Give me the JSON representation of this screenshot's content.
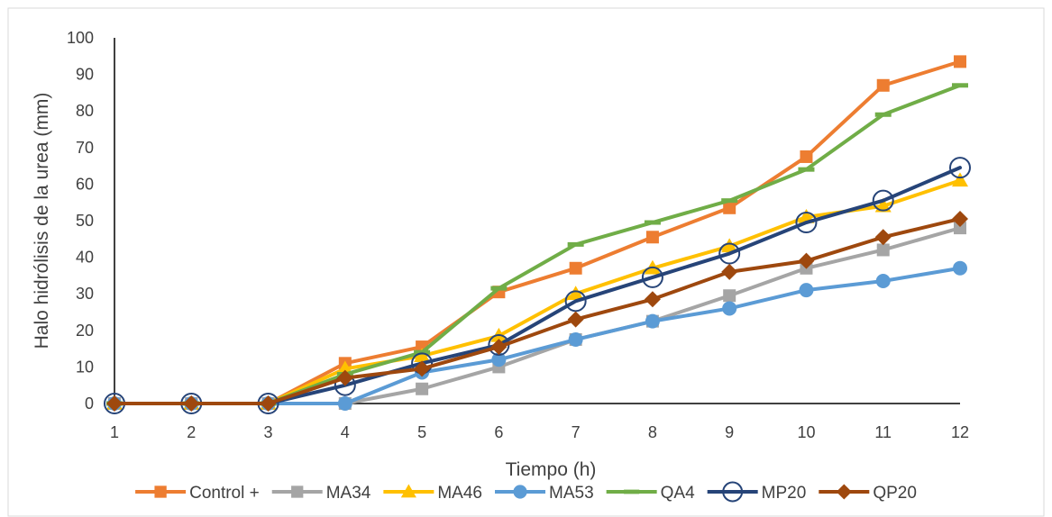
{
  "chart_data": {
    "type": "line",
    "title": "",
    "xlabel": "Tiempo (h)",
    "ylabel": "Halo hidrólisis de la urea  (mm)",
    "x": [
      1,
      2,
      3,
      4,
      5,
      6,
      7,
      8,
      9,
      10,
      11,
      12
    ],
    "xticks": [
      "1",
      "2",
      "3",
      "4",
      "5",
      "6",
      "7",
      "8",
      "9",
      "10",
      "11",
      "12"
    ],
    "ylim": [
      0,
      100
    ],
    "yticks": [
      "0",
      "10",
      "20",
      "30",
      "40",
      "50",
      "60",
      "70",
      "80",
      "90",
      "100"
    ],
    "grid": false,
    "legend_position": "bottom",
    "series": [
      {
        "name": "Control +",
        "color": "#ED7D31",
        "marker": "square",
        "values": [
          0,
          0,
          0,
          11,
          15.5,
          30.5,
          37,
          45.5,
          53.5,
          67.5,
          87,
          93.5
        ]
      },
      {
        "name": "MA34",
        "color": "#A5A5A5",
        "marker": "square",
        "values": [
          0,
          0,
          0,
          0,
          4,
          10,
          17.5,
          22.5,
          29.5,
          37,
          42,
          48
        ]
      },
      {
        "name": "MA46",
        "color": "#FFC000",
        "marker": "triangle",
        "values": [
          0,
          0,
          0,
          9.5,
          13,
          18.5,
          30,
          37,
          43,
          51,
          54,
          61
        ]
      },
      {
        "name": "MA53",
        "color": "#5B9BD5",
        "marker": "circle",
        "values": [
          0,
          0,
          0,
          0,
          8.5,
          12,
          17.5,
          22.5,
          26,
          31,
          33.5,
          37
        ]
      },
      {
        "name": "QA4",
        "color": "#70AD47",
        "marker": "dash",
        "values": [
          0,
          0,
          0,
          8,
          14,
          31.5,
          43.5,
          49.5,
          55.5,
          64,
          79,
          87
        ]
      },
      {
        "name": "MP20",
        "color": "#264478",
        "marker": "open-circle",
        "values": [
          0,
          0,
          0,
          5,
          11,
          16,
          28,
          34.5,
          41,
          49.5,
          55.5,
          64.5
        ]
      },
      {
        "name": "QP20",
        "color": "#9E480E",
        "marker": "diamond",
        "values": [
          0,
          0,
          0,
          7,
          9.5,
          15.5,
          23,
          28.5,
          36,
          39,
          45.5,
          50.5
        ]
      }
    ]
  }
}
